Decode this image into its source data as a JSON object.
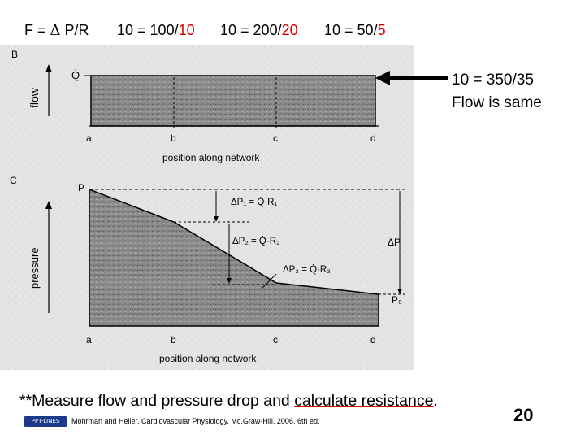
{
  "header": {
    "formula": {
      "prefix": "F = ",
      "delta": "Δ",
      "suffix": " P/R"
    },
    "examples": [
      {
        "lhs": "10 = ",
        "num": "100/",
        "den": "10"
      },
      {
        "lhs": "10 = ",
        "num": "200/",
        "den": "20"
      },
      {
        "lhs": "10 = ",
        "num": "50/",
        "den": "5"
      }
    ]
  },
  "callout": {
    "line1": "10 = 350/35",
    "line2": "Flow is same"
  },
  "figure": {
    "panel_b": {
      "label": "B",
      "y_label": "flow",
      "q_label": "Q̇",
      "points": [
        "a",
        "b",
        "c",
        "d"
      ],
      "x_label": "position along network"
    },
    "panel_c": {
      "label": "C",
      "y_label": "pressure",
      "p_label": "P",
      "p0_label": "P₀",
      "dp_label": "ΔP",
      "dp1": "ΔP₁ = Q̇·R₁",
      "dp2": "ΔP₂ = Q̇·R₂",
      "dp3": "ΔP₃ = Q̇·R₃",
      "points": [
        "a",
        "b",
        "c",
        "d"
      ],
      "x_label": "position along network"
    }
  },
  "note": {
    "prefix": "**Measure flow and pressure drop and ",
    "highlight": "calculate resistance",
    "suffix": "."
  },
  "citation": "Mohrman and Heller. Cardiovascular Physiology. Mc.Graw-Hill, 2006. 6th ed.",
  "logo_text": "PPT-LINES",
  "slide_number": "20",
  "colors": {
    "accent_red": "#d40000",
    "fill_gray": "#7a7a7a",
    "logo_blue": "#1b3a8a"
  }
}
